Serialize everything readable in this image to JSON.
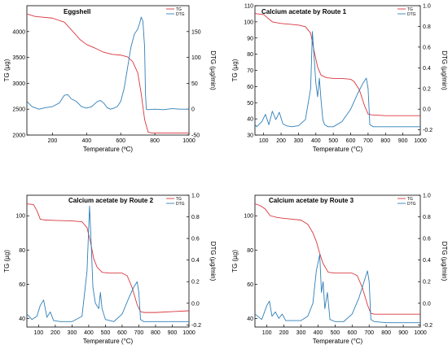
{
  "chart_data": [
    {
      "type": "line",
      "title": "Eggshell",
      "xlabel": "Temperature (ºC)",
      "ylabel": "TG (µg)",
      "y2label": "DTG (µg/min)",
      "xlim": [
        50,
        1000
      ],
      "ylim": [
        2000,
        4500
      ],
      "y2lim": [
        -50,
        200
      ],
      "xticks": [
        "200",
        "400",
        "600",
        "800",
        "1000"
      ],
      "yticks": [
        "2000",
        "2500",
        "3000",
        "3500",
        "4000"
      ],
      "y2ticks": [
        "-50",
        "0",
        "50",
        "100",
        "150"
      ],
      "legend": [
        "TG",
        "DTG"
      ],
      "legend_position": "top-right",
      "colors": {
        "tg": "#d9363e",
        "dtg": "#2f7fb8"
      },
      "series": [
        {
          "name": "TG",
          "axis": "left",
          "x": [
            50,
            100,
            200,
            270,
            320,
            360,
            400,
            450,
            500,
            550,
            600,
            640,
            670,
            700,
            720,
            740,
            760,
            780,
            800,
            900,
            1000
          ],
          "y": [
            4340,
            4290,
            4260,
            4180,
            4000,
            3850,
            3750,
            3680,
            3600,
            3560,
            3545,
            3510,
            3420,
            3200,
            2800,
            2300,
            2060,
            2040,
            2040,
            2040,
            2040
          ]
        },
        {
          "name": "DTG",
          "axis": "right",
          "x": [
            50,
            80,
            120,
            160,
            200,
            240,
            270,
            290,
            310,
            340,
            370,
            400,
            430,
            460,
            480,
            500,
            520,
            540,
            560,
            580,
            600,
            620,
            640,
            660,
            680,
            700,
            710,
            720,
            730,
            740,
            745,
            750,
            760,
            800,
            850,
            900,
            950,
            1000
          ],
          "y": [
            15,
            5,
            0,
            3,
            5,
            12,
            27,
            28,
            20,
            15,
            5,
            2,
            5,
            14,
            17,
            12,
            3,
            0,
            2,
            5,
            15,
            40,
            80,
            120,
            145,
            155,
            165,
            178,
            170,
            120,
            30,
            0,
            -1,
            0,
            -1,
            1,
            0,
            0
          ]
        }
      ]
    },
    {
      "type": "line",
      "title": "Calcium acetate by Route 1",
      "xlabel": "Temperature (°C)",
      "ylabel": "TG (µg)",
      "y2label": "DTG (µg/min)",
      "xlim": [
        50,
        1000
      ],
      "ylim": [
        30,
        110
      ],
      "y2lim": [
        -0.25,
        1.0
      ],
      "xticks": [
        "100",
        "200",
        "300",
        "400",
        "500",
        "600",
        "700",
        "800",
        "900",
        "1000"
      ],
      "yticks": [
        "30",
        "40",
        "50",
        "60",
        "70",
        "80",
        "90",
        "100",
        "110"
      ],
      "y2ticks": [
        "-0.2",
        "0.0",
        "0.2",
        "0.4",
        "0.6",
        "0.8",
        "1.0"
      ],
      "legend": [
        "TG",
        "DTG"
      ],
      "legend_position": "top-right",
      "colors": {
        "tg": "#d9363e",
        "dtg": "#2f7fb8"
      },
      "series": [
        {
          "name": "TG",
          "axis": "left",
          "x": [
            30,
            60,
            100,
            150,
            200,
            250,
            300,
            340,
            370,
            390,
            410,
            430,
            460,
            500,
            550,
            600,
            620,
            650,
            680,
            700,
            720,
            800,
            900,
            1000
          ],
          "y": [
            106,
            105,
            104.5,
            100,
            99,
            98.5,
            98,
            97,
            93,
            82,
            72,
            67,
            65.5,
            65,
            65,
            64.5,
            63,
            58,
            48,
            43,
            42.5,
            42,
            42,
            42
          ]
        },
        {
          "name": "DTG",
          "axis": "right",
          "x": [
            30,
            60,
            90,
            110,
            130,
            150,
            170,
            190,
            210,
            230,
            260,
            300,
            340,
            370,
            380,
            390,
            400,
            410,
            420,
            430,
            440,
            450,
            470,
            500,
            550,
            600,
            640,
            670,
            690,
            700,
            710,
            730,
            800,
            900,
            1000
          ],
          "y": [
            -0.1,
            -0.17,
            -0.12,
            -0.05,
            -0.15,
            -0.02,
            -0.1,
            -0.03,
            -0.14,
            -0.16,
            -0.17,
            -0.16,
            -0.1,
            0.2,
            0.75,
            0.5,
            0.25,
            0.12,
            0.3,
            0.08,
            -0.1,
            -0.15,
            -0.17,
            -0.17,
            -0.12,
            0.0,
            0.15,
            0.25,
            0.3,
            0.2,
            -0.15,
            -0.17,
            -0.17,
            -0.17,
            -0.17
          ]
        }
      ]
    },
    {
      "type": "line",
      "title": "Calcium acetate by Route 2",
      "xlabel": "Temperature (°C)",
      "ylabel": "TG (µg)",
      "y2label": "DTG (µg/min)",
      "xlim": [
        30,
        1000
      ],
      "ylim": [
        35,
        112
      ],
      "y2lim": [
        -0.22,
        1.0
      ],
      "xticks": [
        "100",
        "200",
        "300",
        "400",
        "500",
        "600",
        "700",
        "800",
        "900",
        "1000"
      ],
      "yticks": [
        "40",
        "60",
        "80",
        "100"
      ],
      "y2ticks": [
        "-0.2",
        "0.0",
        "0.2",
        "0.4",
        "0.6",
        "0.8",
        "1.0"
      ],
      "legend": [
        "TG",
        "DTG"
      ],
      "legend_position": "top-right",
      "colors": {
        "tg": "#d9363e",
        "dtg": "#2f7fb8"
      },
      "series": [
        {
          "name": "TG",
          "axis": "left",
          "x": [
            30,
            70,
            90,
            110,
            140,
            200,
            300,
            360,
            390,
            410,
            430,
            450,
            480,
            520,
            600,
            630,
            660,
            690,
            710,
            730,
            800,
            900,
            1000
          ],
          "y": [
            107,
            106.5,
            103,
            98,
            97.5,
            97.3,
            97,
            96.5,
            93,
            85,
            75,
            70,
            67,
            66.5,
            66.5,
            65,
            58,
            48,
            44,
            43.5,
            43.5,
            44,
            44.5
          ]
        },
        {
          "name": "DTG",
          "axis": "right",
          "x": [
            30,
            60,
            90,
            110,
            130,
            150,
            170,
            190,
            230,
            300,
            360,
            390,
            405,
            415,
            425,
            440,
            460,
            470,
            480,
            500,
            550,
            600,
            640,
            670,
            690,
            700,
            710,
            730,
            800,
            900,
            1000
          ],
          "y": [
            -0.1,
            -0.15,
            -0.12,
            -0.02,
            0.03,
            -0.13,
            -0.08,
            -0.16,
            -0.17,
            -0.17,
            -0.12,
            0.3,
            0.9,
            0.55,
            0.15,
            0.0,
            -0.05,
            0.1,
            -0.05,
            -0.15,
            -0.17,
            -0.1,
            0.05,
            0.15,
            0.2,
            0.1,
            -0.15,
            -0.17,
            -0.17,
            -0.17,
            -0.17
          ]
        }
      ]
    },
    {
      "type": "line",
      "title": "Calcium acetate by Route 3",
      "xlabel": "Temperature (°C)",
      "ylabel": "TG (µg)",
      "y2label": "DTG (µg/min)",
      "xlim": [
        30,
        1000
      ],
      "ylim": [
        35,
        112
      ],
      "y2lim": [
        -0.22,
        1.0
      ],
      "xticks": [
        "100",
        "200",
        "300",
        "400",
        "500",
        "600",
        "700",
        "800",
        "900",
        "1000"
      ],
      "yticks": [
        "40",
        "60",
        "80",
        "100"
      ],
      "y2ticks": [
        "-0.2",
        "0.0",
        "0.2",
        "0.4",
        "0.6",
        "0.8",
        "1.0"
      ],
      "legend": [
        "TG",
        "DTG"
      ],
      "legend_position": "top-right",
      "colors": {
        "tg": "#d9363e",
        "dtg": "#2f7fb8"
      },
      "series": [
        {
          "name": "TG",
          "axis": "left",
          "x": [
            30,
            60,
            90,
            120,
            160,
            200,
            250,
            300,
            340,
            370,
            390,
            410,
            430,
            460,
            500,
            600,
            630,
            660,
            690,
            710,
            730,
            800,
            900,
            1000
          ],
          "y": [
            107,
            106,
            104,
            100,
            99,
            98.5,
            98,
            97.5,
            95,
            90,
            85,
            78,
            72,
            67,
            66.5,
            66.5,
            65,
            58,
            48,
            43,
            42.5,
            42.5,
            42.5,
            42.5
          ]
        },
        {
          "name": "DTG",
          "axis": "right",
          "x": [
            30,
            70,
            100,
            115,
            130,
            150,
            170,
            190,
            210,
            250,
            300,
            340,
            370,
            390,
            410,
            420,
            430,
            440,
            455,
            470,
            500,
            550,
            600,
            640,
            670,
            690,
            700,
            710,
            730,
            800,
            900,
            1000
          ],
          "y": [
            -0.1,
            -0.15,
            -0.02,
            0.02,
            -0.12,
            -0.08,
            -0.14,
            -0.1,
            -0.16,
            -0.16,
            -0.16,
            -0.12,
            0.0,
            0.3,
            0.45,
            0.1,
            0.2,
            -0.05,
            0.1,
            -0.15,
            -0.17,
            -0.17,
            -0.1,
            0.05,
            0.2,
            0.3,
            0.2,
            -0.15,
            -0.17,
            -0.18,
            -0.18,
            -0.18
          ]
        }
      ]
    }
  ]
}
